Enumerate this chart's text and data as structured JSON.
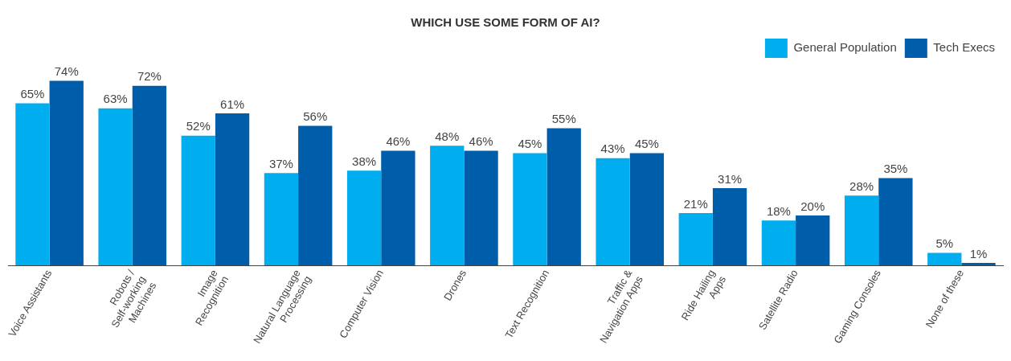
{
  "chart_data": {
    "type": "bar",
    "title": "WHICH USE SOME FORM OF AI?",
    "categories": [
      "Voice Assistants",
      "Robots / Self-working Machines",
      "Image Recognition",
      "Natural Language Processing",
      "Computer Vision",
      "Drones",
      "Text Recognition",
      "Traffic & Navigation Apps",
      "Ride Hailing Apps",
      "Satellite Radio",
      "Gaming Consoles",
      "None of these"
    ],
    "series": [
      {
        "name": "General Population",
        "color": "#00aeef",
        "values": [
          65,
          63,
          52,
          37,
          38,
          48,
          45,
          43,
          21,
          18,
          28,
          5
        ],
        "value_labels": [
          "65%",
          "63%",
          "52%",
          "37%",
          "38%",
          "48%",
          "45%",
          "43%",
          "21%",
          "18%",
          "28%",
          "5%"
        ]
      },
      {
        "name": "Tech Execs",
        "color": "#005daa",
        "values": [
          74,
          72,
          61,
          56,
          46,
          46,
          55,
          45,
          31,
          20,
          35,
          1
        ],
        "value_labels": [
          "74%",
          "72%",
          "61%",
          "56%",
          "46%",
          "46%",
          "55%",
          "45%",
          "31%",
          "20%",
          "35%",
          "1%"
        ]
      }
    ],
    "legend": "top right",
    "grid": false
  }
}
